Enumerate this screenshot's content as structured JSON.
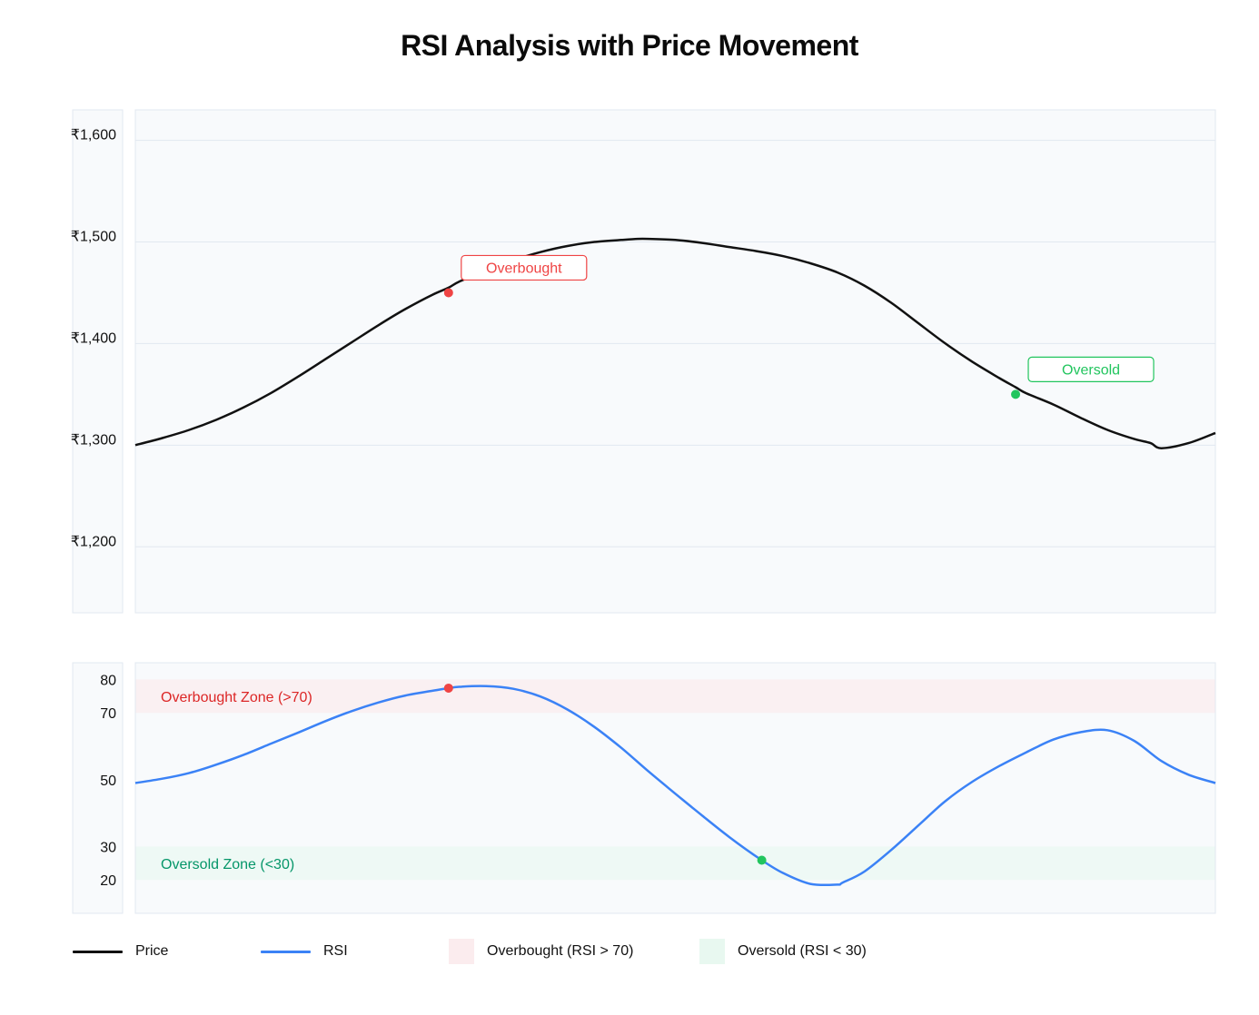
{
  "chart_data": [
    {
      "id": "price",
      "type": "line",
      "title": "RSI Analysis with Price Movement",
      "ylim": [
        1135,
        1630
      ],
      "yticks": [
        1200,
        1300,
        1400,
        1500,
        1600
      ],
      "ytick_labels": [
        "₹1,200",
        "₹1,300",
        "₹1,400",
        "₹1,500",
        "₹1,600"
      ],
      "grid": true,
      "series": [
        {
          "name": "Price",
          "color": "#111111",
          "x": [
            0,
            0.025,
            0.05,
            0.075,
            0.1,
            0.125,
            0.15,
            0.175,
            0.2,
            0.225,
            0.25,
            0.275,
            0.29,
            0.3,
            0.325,
            0.35,
            0.375,
            0.4,
            0.425,
            0.45,
            0.465,
            0.475,
            0.5,
            0.525,
            0.55,
            0.575,
            0.6,
            0.625,
            0.65,
            0.675,
            0.7,
            0.725,
            0.75,
            0.775,
            0.8,
            0.815,
            0.825,
            0.85,
            0.875,
            0.9,
            0.925,
            0.94,
            0.95,
            0.975,
            1.0
          ],
          "values": [
            1300,
            1307,
            1315,
            1325,
            1337,
            1351,
            1367,
            1384,
            1401,
            1418,
            1434,
            1448,
            1455,
            1461,
            1472,
            1482,
            1490,
            1496,
            1500,
            1502,
            1503,
            1503,
            1502,
            1499,
            1495,
            1491,
            1486,
            1479,
            1470,
            1457,
            1440,
            1420,
            1400,
            1382,
            1366,
            1357,
            1351,
            1340,
            1327,
            1315,
            1306,
            1302,
            1297,
            1302,
            1312
          ]
        }
      ],
      "annotations": [
        {
          "label": "Overbought",
          "x": 0.29,
          "y": 1450,
          "color": "#ef4444"
        },
        {
          "label": "Oversold",
          "x": 0.815,
          "y": 1350,
          "color": "#22c55e"
        }
      ]
    },
    {
      "id": "rsi",
      "type": "line",
      "ylim": [
        10,
        85
      ],
      "yticks": [
        20,
        30,
        50,
        70,
        80
      ],
      "ytick_labels": [
        "20",
        "30",
        "50",
        "70",
        "80"
      ],
      "grid": false,
      "zones": [
        {
          "label": "Overbought Zone (>70)",
          "from": 70,
          "to": 80,
          "color": "#fbe8ea",
          "text_color": "#dc2626"
        },
        {
          "label": "Oversold Zone (<30)",
          "from": 20,
          "to": 30,
          "color": "#e6f7ef",
          "text_color": "#059669"
        }
      ],
      "series": [
        {
          "name": "RSI",
          "color": "#3b82f6",
          "x": [
            0,
            0.025,
            0.05,
            0.075,
            0.1,
            0.125,
            0.15,
            0.175,
            0.2,
            0.225,
            0.25,
            0.275,
            0.29,
            0.3,
            0.325,
            0.35,
            0.375,
            0.4,
            0.425,
            0.45,
            0.475,
            0.5,
            0.525,
            0.55,
            0.58,
            0.6,
            0.625,
            0.65,
            0.655,
            0.675,
            0.7,
            0.725,
            0.75,
            0.775,
            0.8,
            0.825,
            0.85,
            0.875,
            0.9,
            0.925,
            0.95,
            0.975,
            1.0
          ],
          "values": [
            49,
            50.3,
            52,
            54.5,
            57.4,
            60.7,
            64,
            67.4,
            70.5,
            73.1,
            75.2,
            76.6,
            77.4,
            77.8,
            78,
            77.2,
            74.9,
            71,
            65.8,
            59.5,
            52.5,
            45.8,
            39.2,
            32.8,
            25.9,
            22,
            18.8,
            18.6,
            19.2,
            22.5,
            29,
            36.3,
            43.6,
            49.4,
            54.1,
            58.2,
            62,
            64.2,
            64.8,
            61.6,
            55.6,
            51.5,
            49
          ]
        }
      ],
      "markers": [
        {
          "x": 0.29,
          "y": 77.4,
          "color": "#ef4444"
        },
        {
          "x": 0.58,
          "y": 25.9,
          "color": "#22c55e"
        }
      ]
    }
  ],
  "legend": {
    "price_label": "Price",
    "rsi_label": "RSI",
    "overbought_label": "Overbought (RSI > 70)",
    "oversold_label": "Oversold (RSI < 30)",
    "price_color": "#111111",
    "rsi_color": "#3b82f6",
    "overbought_color": "#fbecee",
    "oversold_color": "#e8f8f0"
  }
}
